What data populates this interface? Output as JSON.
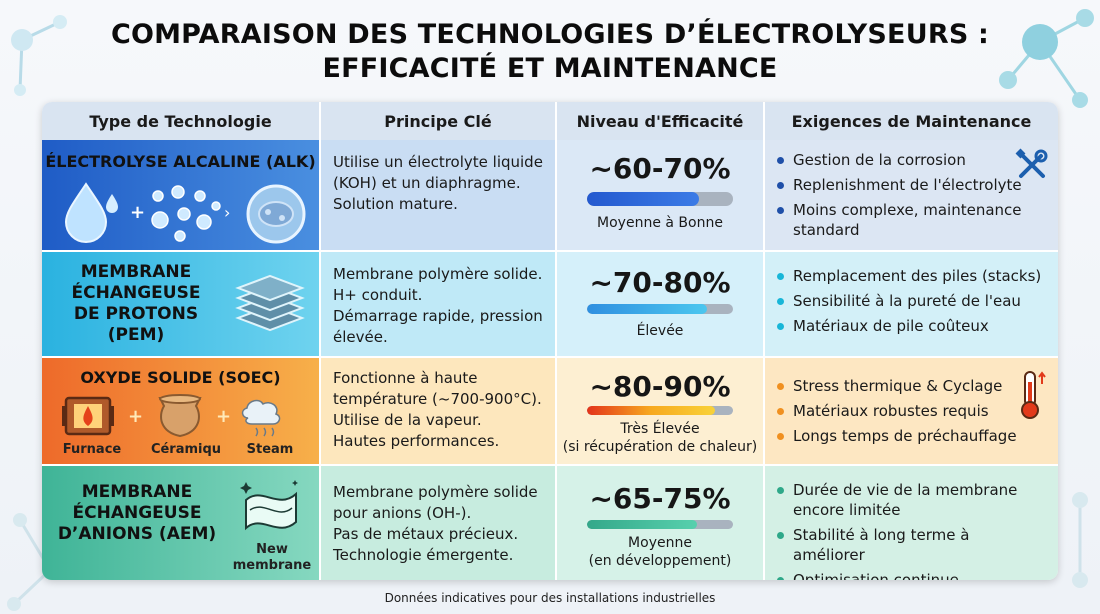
{
  "title_line1": "COMPARAISON DES TECHNOLOGIES D’ÉLECTROLYSEURS :",
  "title_line2": "EFFICACITÉ ET MAINTENANCE",
  "headers": {
    "type": "Type de Technologie",
    "principle": "Principe Clé",
    "efficiency": "Niveau d'Efficacité",
    "maintenance": "Exigences de Maintenance"
  },
  "rows": [
    {
      "name": "ÉLECTROLYSE ALCALINE (ALK)",
      "principle": "Utilise un électrolyte liquide (KOH) et un diaphragme.\nSolution mature.",
      "efficiency": "~60-70%",
      "efficiency_fill": 0.77,
      "level": "Moyenne à Bonne",
      "maintenance": [
        "Gestion de la corrosion",
        "Replenishment de l'électrolyte",
        "Moins complexe, maintenance standard"
      ],
      "icons": [
        "water-drop-icon",
        "bubbles-icon",
        "cell-icon",
        "wrench-screwdriver-icon"
      ],
      "colors": {
        "bg": "#2f6fd2",
        "bar": "#2a64d8",
        "dot": "#1f4fa8"
      }
    },
    {
      "name": "MEMBRANE ÉCHANGEUSE DE PROTONS (PEM)",
      "principle": "Membrane polymère solide.\nH+ conduit.\nDémarrage rapide, pression élevée.",
      "efficiency": "~70-80%",
      "efficiency_fill": 0.82,
      "level": "Élevée",
      "maintenance": [
        "Remplacement des piles (stacks)",
        "Sensibilité à la pureté de l'eau",
        "Matériaux de pile coûteux"
      ],
      "icons": [
        "membrane-stack-icon"
      ],
      "colors": {
        "bg": "#39bde3",
        "bar": "#38b6e6",
        "dot": "#18b6d8"
      }
    },
    {
      "name": "OXYDE SOLIDE (SOEC)",
      "principle": "Fonctionne à haute température (~700-900°C).\nUtilise de la vapeur.\nHautes performances.",
      "efficiency": "~80-90%",
      "efficiency_fill": 0.88,
      "level": "Très Élevée\n(si récupération de chaleur)",
      "maintenance": [
        "Stress thermique & Cyclage",
        "Matériaux robustes requis",
        "Longs temps de préchauffage"
      ],
      "icons": [
        "furnace-icon",
        "ceramic-pot-icon",
        "steam-icon",
        "thermometer-icon"
      ],
      "icon_labels": [
        "Furnace",
        "Céramiqu",
        "Steam"
      ],
      "colors": {
        "bg": "#f08a2a",
        "bar": "#f2a21f",
        "dot": "#f09020"
      }
    },
    {
      "name": "MEMBRANE ÉCHANGEUSE D’ANIONS (AEM)",
      "principle": "Membrane polymère solide pour anions (OH-).\nPas de métaux précieux.\nTechnologie émergente.",
      "efficiency": "~65-75%",
      "efficiency_fill": 0.75,
      "level": "Moyenne\n(en développement)",
      "maintenance": [
        "Durée de vie de la membrane encore limitée",
        "Stabilité à long terme à améliorer",
        "Optimisation continue"
      ],
      "icons": [
        "new-membrane-icon"
      ],
      "icon_labels": [
        "New\nmembrane"
      ],
      "colors": {
        "bg": "#57c2a6",
        "bar": "#4cc0a0",
        "dot": "#2ea889"
      }
    }
  ],
  "footer": "Données indicatives pour des installations industrielles"
}
